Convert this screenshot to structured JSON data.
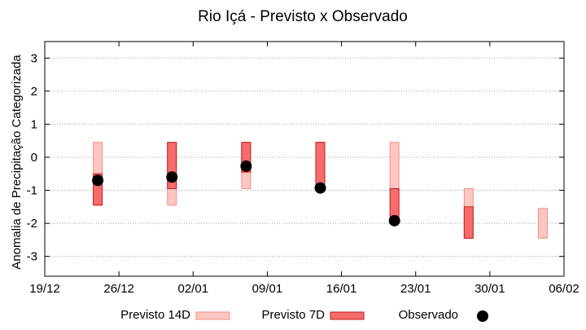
{
  "chart_data": {
    "type": "range-bar-with-points",
    "title": "Rio Içá - Previsto x Observado",
    "xlabel": "",
    "ylabel": "Anomalia de Precipitação Categorizada",
    "ylim": [
      -3.6,
      3.5
    ],
    "yticks": [
      -3,
      -2,
      -1,
      0,
      1,
      2,
      3
    ],
    "ytick_labels": [
      "-3",
      "-2",
      "-1",
      "0",
      "1",
      "2",
      "3"
    ],
    "xlim_days": [
      0,
      49
    ],
    "xticks_days": [
      0,
      7,
      14,
      21,
      28,
      35,
      42,
      49
    ],
    "xtick_labels": [
      "19/12",
      "26/12",
      "02/01",
      "09/01",
      "16/01",
      "23/01",
      "30/01",
      "06/02"
    ],
    "grid": "horizontal dotted",
    "legend_position": "bottom",
    "colors": {
      "previsto_14d_fill": "#fbc7c0",
      "previsto_14d_stroke": "#f08f86",
      "previsto_7d_fill": "#f66c6c",
      "previsto_7d_stroke": "#c21a1a",
      "observado": "#000000"
    },
    "series": [
      {
        "name": "Previsto 14D",
        "kind": "range",
        "x_days": [
          5,
          12,
          19,
          26,
          33,
          40,
          47
        ],
        "low": [
          -1.45,
          -1.45,
          -0.95,
          -0.95,
          -0.95,
          -2.45,
          -2.45
        ],
        "high": [
          0.45,
          0.45,
          0.45,
          0.45,
          0.45,
          -0.95,
          -1.55
        ]
      },
      {
        "name": "Previsto 7D",
        "kind": "range",
        "x_days": [
          5,
          12,
          19,
          26,
          33,
          40
        ],
        "low": [
          -1.45,
          -0.95,
          -0.45,
          -0.95,
          -1.95,
          -2.45
        ],
        "high": [
          -0.5,
          0.45,
          0.45,
          0.45,
          -0.95,
          -1.5
        ]
      },
      {
        "name": "Observado",
        "kind": "point",
        "x_days": [
          5,
          12,
          19,
          26,
          33
        ],
        "values": [
          -0.7,
          -0.6,
          -0.27,
          -0.93,
          -1.92
        ]
      }
    ]
  }
}
